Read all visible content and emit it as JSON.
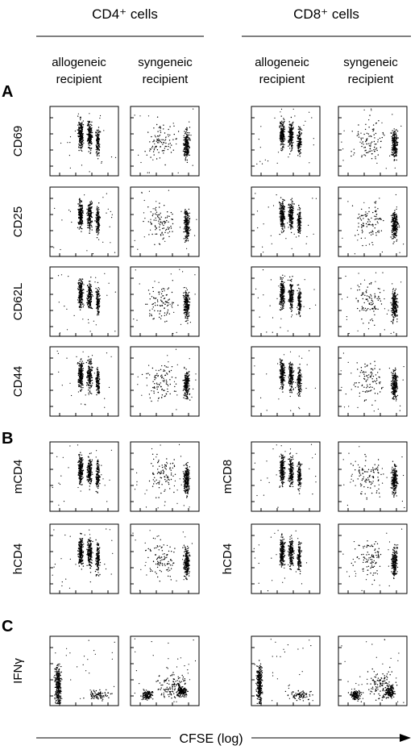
{
  "columns": [
    {
      "title": "CD4⁺ cells",
      "subheaders": [
        "allogeneic recipient",
        "syngeneic recipient"
      ]
    },
    {
      "title": "CD8⁺ cells",
      "subheaders": [
        "allogeneic recipient",
        "syngeneic recipient"
      ]
    }
  ],
  "panels": [
    {
      "letter": "A",
      "rows": [
        {
          "labels": [
            "CD69"
          ]
        },
        {
          "labels": [
            "CD25"
          ]
        },
        {
          "labels": [
            "CD62L"
          ]
        },
        {
          "labels": [
            "CD44"
          ]
        }
      ]
    },
    {
      "letter": "B",
      "rows": [
        {
          "labels": [
            "mCD4",
            "mCD8"
          ]
        },
        {
          "labels": [
            "hCD4",
            "hCD4"
          ]
        }
      ]
    },
    {
      "letter": "C",
      "rows": [
        {
          "labels": [
            "IFNγ"
          ]
        }
      ]
    }
  ],
  "x_axis_label": "CFSE (log)"
}
